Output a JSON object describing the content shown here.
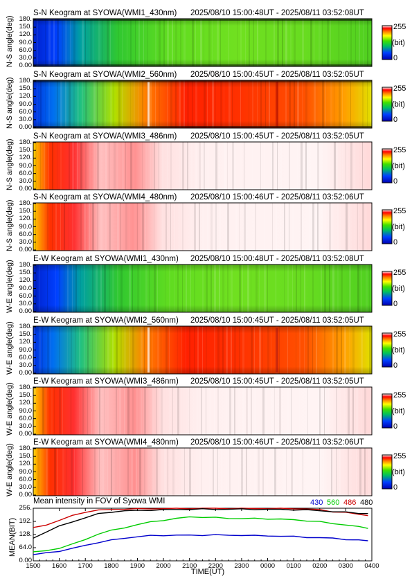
{
  "keograms": [
    {
      "title": "S-N Keogram at SYOWA(WMI1_430nm)",
      "time": "2025/08/10 15:00:48UT - 2025/08/11 03:52:08UT",
      "ylabel": "N-S angle(deg)",
      "ticks": [
        "180.",
        "150.",
        "120.",
        "90.0",
        "60.0",
        "30.0",
        "0.00"
      ],
      "style": "green"
    },
    {
      "title": "S-N Keogram at SYOWA(WMI2_560nm)",
      "time": "2025/08/10 15:00:45UT - 2025/08/11 03:52:05UT",
      "ylabel": "N-S angle(deg)",
      "ticks": [
        "180.",
        "150.",
        "120.",
        "90.0",
        "60.0",
        "30.0",
        "0.00"
      ],
      "style": "red"
    },
    {
      "title": "S-N Keogram at SYOWA(WMI3_486nm)",
      "time": "2025/08/10 15:00:45UT - 2025/08/11 03:52:05UT",
      "ylabel": "N-S angle(deg)",
      "ticks": [
        "180.",
        "150.",
        "120.",
        "90.0",
        "60.0",
        "30.0",
        "0.00"
      ],
      "style": "sat"
    },
    {
      "title": "S-N Keogram at SYOWA(WMI4_480nm)",
      "time": "2025/08/10 15:00:46UT - 2025/08/11 03:52:06UT",
      "ylabel": "N-S angle(deg)",
      "ticks": [
        "180.",
        "150.",
        "120.",
        "90.0",
        "60.0",
        "30.0",
        "0.00"
      ],
      "style": "sat"
    },
    {
      "title": "E-W Keogram at SYOWA(WMI1_430nm)",
      "time": "2025/08/10 15:00:48UT - 2025/08/11 03:52:08UT",
      "ylabel": "W-E angle(deg)",
      "ticks": [
        "180.",
        "150.",
        "120.",
        "90.0",
        "60.0",
        "30.0",
        "0.00"
      ],
      "style": "green"
    },
    {
      "title": "E-W Keogram at SYOWA(WMI2_560nm)",
      "time": "2025/08/10 15:00:45UT - 2025/08/11 03:52:05UT",
      "ylabel": "W-E angle(deg)",
      "ticks": [
        "180.",
        "150.",
        "120.",
        "90.0",
        "60.0",
        "30.0",
        "0.00"
      ],
      "style": "red"
    },
    {
      "title": "E-W Keogram at SYOWA(WMI3_486nm)",
      "time": "2025/08/10 15:00:45UT - 2025/08/11 03:52:05UT",
      "ylabel": "W-E angle(deg)",
      "ticks": [
        "180.",
        "150.",
        "120.",
        "90.0",
        "60.0",
        "30.0",
        "0.00"
      ],
      "style": "sat"
    },
    {
      "title": "E-W Keogram at SYOWA(WMI4_480nm)",
      "time": "2025/08/10 15:00:46UT - 2025/08/11 03:52:06UT",
      "ylabel": "W-E angle(deg)",
      "ticks": [
        "180.",
        "150.",
        "120.",
        "90.0",
        "60.0",
        "30.0",
        "0.00"
      ],
      "style": "sat"
    }
  ],
  "colorbar": {
    "max": "255",
    "unit": "(bit)",
    "min": "0"
  },
  "chart_data": {
    "type": "line",
    "title": "Mean intensity in FOV of Syowa WMI",
    "xlabel": "TIME(UT)",
    "ylabel": "MEAN(BIT)",
    "x_ticks": [
      "1500",
      "1600",
      "1700",
      "1800",
      "1900",
      "2000",
      "2100",
      "2200",
      "2300",
      "0000",
      "0100",
      "0200",
      "0300",
      "0400"
    ],
    "y_ticks": [
      "256.",
      "192.",
      "128.",
      "64.0",
      "0.00"
    ],
    "ylim": [
      0,
      256
    ],
    "x_hours": [
      15,
      15.5,
      16,
      16.5,
      17,
      17.5,
      18,
      18.5,
      19,
      19.5,
      20,
      20.5,
      21,
      21.5,
      22,
      22.5,
      23,
      23.5,
      24,
      24.5,
      25,
      25.5,
      26,
      26.5,
      27,
      27.5,
      27.85
    ],
    "series": [
      {
        "name": "430",
        "color": "#0000cc",
        "values": [
          30,
          38,
          48,
          60,
          75,
          90,
          100,
          110,
          118,
          122,
          124,
          125,
          124,
          125,
          126,
          124,
          125,
          122,
          122,
          120,
          118,
          115,
          112,
          110,
          105,
          100,
          98
        ]
      },
      {
        "name": "560",
        "color": "#00cc00",
        "values": [
          42,
          50,
          62,
          80,
          105,
          130,
          148,
          162,
          175,
          190,
          198,
          205,
          215,
          212,
          210,
          208,
          205,
          206,
          205,
          202,
          200,
          195,
          190,
          182,
          175,
          165,
          160
        ]
      },
      {
        "name": "486",
        "color": "#cc0000",
        "values": [
          160,
          176,
          196,
          220,
          238,
          246,
          250,
          252,
          252,
          254,
          254,
          255,
          255,
          255,
          255,
          255,
          255,
          255,
          255,
          255,
          255,
          252,
          248,
          240,
          235,
          226,
          222
        ]
      },
      {
        "name": "480",
        "color": "#000000",
        "values": [
          110,
          142,
          168,
          190,
          210,
          228,
          238,
          243,
          245,
          247,
          248,
          250,
          251,
          251,
          251,
          251,
          251,
          251,
          250,
          250,
          249,
          247,
          244,
          240,
          236,
          232,
          230
        ]
      }
    ]
  }
}
